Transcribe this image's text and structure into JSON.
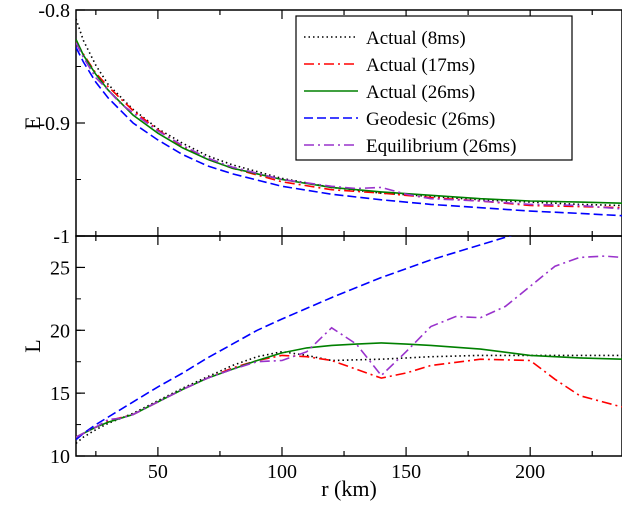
{
  "chart_data": [
    {
      "type": "line",
      "panel": "top",
      "xlabel": "",
      "ylabel": "E",
      "xlim": [
        17,
        237
      ],
      "ylim": [
        -1.0,
        -0.8
      ],
      "yticks": [
        -0.8,
        -0.9,
        -1
      ],
      "ytick_labels": [
        "-0.8",
        "-0.9",
        "-1"
      ],
      "xticks": [
        50,
        100,
        150,
        200
      ],
      "grid": false,
      "legend_position": "top-right",
      "series": [
        {
          "name": "Actual (8ms)",
          "color": "#000000",
          "dash": "dotted",
          "x": [
            17,
            20,
            25,
            30,
            40,
            50,
            60,
            70,
            80,
            100,
            120,
            140,
            160,
            180,
            200,
            220,
            237
          ],
          "y": [
            -0.808,
            -0.827,
            -0.849,
            -0.866,
            -0.888,
            -0.905,
            -0.918,
            -0.929,
            -0.937,
            -0.949,
            -0.957,
            -0.962,
            -0.965,
            -0.968,
            -0.97,
            -0.972,
            -0.973
          ]
        },
        {
          "name": "Actual (17ms)",
          "color": "#ff0000",
          "dash": "dashdot",
          "x": [
            17,
            20,
            25,
            30,
            40,
            50,
            60,
            70,
            80,
            100,
            120,
            140,
            160,
            180,
            200,
            220,
            237
          ],
          "y": [
            -0.828,
            -0.839,
            -0.856,
            -0.868,
            -0.889,
            -0.906,
            -0.921,
            -0.932,
            -0.94,
            -0.952,
            -0.959,
            -0.962,
            -0.966,
            -0.969,
            -0.973,
            -0.974,
            -0.975
          ]
        },
        {
          "name": "Actual (26ms)",
          "color": "#008000",
          "dash": "solid",
          "x": [
            17,
            20,
            25,
            30,
            40,
            50,
            60,
            70,
            80,
            100,
            120,
            140,
            160,
            180,
            200,
            220,
            237
          ],
          "y": [
            -0.826,
            -0.84,
            -0.857,
            -0.871,
            -0.893,
            -0.909,
            -0.922,
            -0.932,
            -0.94,
            -0.95,
            -0.957,
            -0.961,
            -0.964,
            -0.967,
            -0.969,
            -0.97,
            -0.971
          ]
        },
        {
          "name": "Geodesic (26ms)",
          "color": "#0000ff",
          "dash": "dashed",
          "x": [
            17,
            20,
            25,
            30,
            40,
            50,
            60,
            70,
            80,
            100,
            120,
            140,
            160,
            180,
            200,
            220,
            237
          ],
          "y": [
            -0.833,
            -0.846,
            -0.864,
            -0.878,
            -0.9,
            -0.915,
            -0.928,
            -0.938,
            -0.945,
            -0.956,
            -0.963,
            -0.968,
            -0.972,
            -0.975,
            -0.978,
            -0.98,
            -0.982
          ]
        },
        {
          "name": "Equilibrium (26ms)",
          "color": "#9932cc",
          "dash": "dashdot",
          "x": [
            17,
            20,
            25,
            30,
            35,
            40,
            50,
            60,
            70,
            80,
            100,
            120,
            130,
            140,
            150,
            160,
            180,
            200,
            220,
            237
          ],
          "y": [
            -0.829,
            -0.842,
            -0.86,
            -0.871,
            -0.883,
            -0.891,
            -0.907,
            -0.92,
            -0.931,
            -0.939,
            -0.95,
            -0.956,
            -0.958,
            -0.957,
            -0.963,
            -0.967,
            -0.969,
            -0.972,
            -0.973,
            -0.976
          ]
        }
      ]
    },
    {
      "type": "line",
      "panel": "bottom",
      "xlabel": "r (km)",
      "ylabel": "L",
      "xlim": [
        17,
        237
      ],
      "ylim": [
        10,
        27.5
      ],
      "yticks": [
        10,
        15,
        20,
        25
      ],
      "ytick_labels": [
        "10",
        "15",
        "20",
        "25"
      ],
      "xticks": [
        50,
        100,
        150,
        200
      ],
      "xtick_labels": [
        "50",
        "100",
        "150",
        "200"
      ],
      "grid": false,
      "series": [
        {
          "name": "Actual (8ms)",
          "color": "#000000",
          "dash": "dotted",
          "x": [
            17,
            20,
            25,
            30,
            40,
            50,
            60,
            70,
            80,
            90,
            100,
            110,
            120,
            140,
            160,
            180,
            200,
            220,
            237
          ],
          "y": [
            11.0,
            11.5,
            12.1,
            12.6,
            13.4,
            14.4,
            15.4,
            16.3,
            17.2,
            17.9,
            18.3,
            18.0,
            17.6,
            17.7,
            17.9,
            18.0,
            18.0,
            18.0,
            18.0
          ]
        },
        {
          "name": "Actual (17ms)",
          "color": "#ff0000",
          "dash": "dashdot",
          "x": [
            17,
            20,
            25,
            30,
            40,
            50,
            60,
            70,
            80,
            90,
            100,
            110,
            120,
            130,
            140,
            150,
            160,
            180,
            200,
            210,
            220,
            237
          ],
          "y": [
            11.5,
            11.8,
            12.3,
            12.8,
            13.3,
            14.3,
            15.3,
            16.2,
            17.0,
            17.6,
            18.0,
            17.9,
            17.6,
            16.9,
            16.2,
            16.6,
            17.2,
            17.7,
            17.6,
            16.1,
            14.8,
            13.9
          ]
        },
        {
          "name": "Actual (26ms)",
          "color": "#008000",
          "dash": "solid",
          "x": [
            17,
            20,
            25,
            30,
            40,
            50,
            60,
            70,
            80,
            90,
            100,
            110,
            120,
            130,
            140,
            150,
            160,
            180,
            200,
            220,
            237
          ],
          "y": [
            11.5,
            11.8,
            12.3,
            12.7,
            13.3,
            14.3,
            15.3,
            16.2,
            16.9,
            17.6,
            18.2,
            18.6,
            18.8,
            18.9,
            19.0,
            18.9,
            18.8,
            18.5,
            18.0,
            17.8,
            17.7
          ]
        },
        {
          "name": "Geodesic (26ms)",
          "color": "#0000ff",
          "dash": "dashed",
          "x": [
            17,
            20,
            25,
            30,
            40,
            50,
            60,
            70,
            80,
            90,
            100,
            120,
            140,
            160,
            180,
            200,
            210
          ],
          "y": [
            11.3,
            11.8,
            12.5,
            13.1,
            14.3,
            15.5,
            16.6,
            17.8,
            18.9,
            20.0,
            20.9,
            22.6,
            24.2,
            25.6,
            26.8,
            28.0,
            28.5
          ]
        },
        {
          "name": "Equilibrium (26ms)",
          "color": "#9932cc",
          "dash": "dashdot",
          "x": [
            17,
            20,
            25,
            30,
            35,
            40,
            50,
            60,
            70,
            80,
            90,
            100,
            110,
            120,
            130,
            140,
            150,
            160,
            170,
            180,
            190,
            200,
            210,
            220,
            230,
            237
          ],
          "y": [
            11.5,
            11.8,
            12.3,
            12.9,
            13.0,
            13.3,
            14.3,
            15.3,
            16.2,
            16.9,
            17.5,
            17.6,
            18.3,
            20.2,
            18.9,
            16.4,
            18.3,
            20.3,
            21.1,
            21.0,
            21.9,
            23.5,
            25.1,
            25.8,
            25.9,
            25.8
          ]
        }
      ]
    }
  ]
}
